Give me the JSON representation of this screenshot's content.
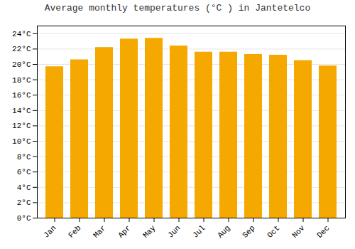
{
  "chart_data": {
    "type": "bar",
    "title": "Average monthly temperatures (°C ) in Jantetelco",
    "categories": [
      "Jan",
      "Feb",
      "Mar",
      "Apr",
      "May",
      "Jun",
      "Jul",
      "Aug",
      "Sep",
      "Oct",
      "Nov",
      "Dec"
    ],
    "values": [
      19.7,
      20.6,
      22.2,
      23.3,
      23.4,
      22.4,
      21.6,
      21.6,
      21.3,
      21.2,
      20.5,
      19.8
    ],
    "color": "#F5A800",
    "ylim": [
      0,
      25
    ],
    "yticks": [
      {
        "value": 0,
        "label": "0°C"
      },
      {
        "value": 2,
        "label": "2°C"
      },
      {
        "value": 4,
        "label": "4°C"
      },
      {
        "value": 6,
        "label": "6°C"
      },
      {
        "value": 8,
        "label": "8°C"
      },
      {
        "value": 10,
        "label": "10°C"
      },
      {
        "value": 12,
        "label": "12°C"
      },
      {
        "value": 14,
        "label": "14°C"
      },
      {
        "value": 16,
        "label": "16°C"
      },
      {
        "value": 18,
        "label": "18°C"
      },
      {
        "value": 20,
        "label": "20°C"
      },
      {
        "value": 22,
        "label": "22°C"
      },
      {
        "value": 24,
        "label": "24°C"
      }
    ],
    "grid": true
  }
}
